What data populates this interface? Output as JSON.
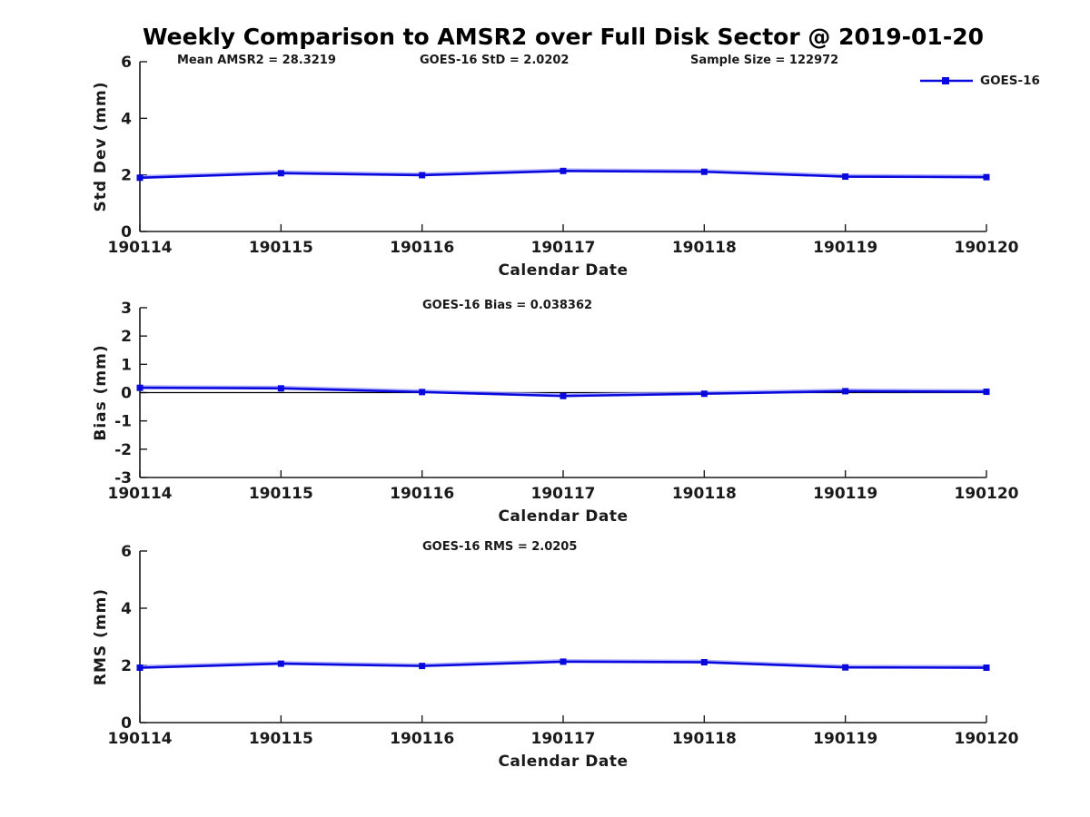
{
  "figure": {
    "title": "Weekly Comparison to AMSR2 over Full Disk Sector @ 2019-01-20",
    "text_color": "#1a1a1a",
    "line_color": "#0909dd",
    "halo_color": "#9b9bff",
    "background": "#ffffff"
  },
  "legend": {
    "label": "GOES-16"
  },
  "chart_data": [
    {
      "type": "line",
      "annotations": [
        "Mean AMSR2 = 28.3219",
        "GOES-16 StD = 2.0202",
        "Sample Size = 122972"
      ],
      "ylabel": "Std Dev (mm)",
      "xlabel": "Calendar Date",
      "categories": [
        "190114",
        "190115",
        "190116",
        "190117",
        "190118",
        "190119",
        "190120"
      ],
      "series": [
        {
          "name": "GOES-16",
          "values": [
            1.9,
            2.06,
            1.99,
            2.14,
            2.11,
            1.94,
            1.92
          ]
        }
      ],
      "ylim": [
        0,
        6
      ],
      "yticks": [
        0,
        2,
        4,
        6
      ],
      "zero_line": false,
      "legend_position": "top-right",
      "grid": false
    },
    {
      "type": "line",
      "annotations": [
        "GOES-16 Bias  = 0.038362"
      ],
      "ylabel": "Bias (mm)",
      "xlabel": "Calendar Date",
      "categories": [
        "190114",
        "190115",
        "190116",
        "190117",
        "190118",
        "190119",
        "190120"
      ],
      "series": [
        {
          "name": "GOES-16",
          "values": [
            0.17,
            0.15,
            0.02,
            -0.12,
            -0.04,
            0.05,
            0.03
          ]
        }
      ],
      "ylim": [
        -3,
        3
      ],
      "yticks": [
        -3,
        -2,
        -1,
        0,
        1,
        2,
        3
      ],
      "zero_line": true,
      "grid": false
    },
    {
      "type": "line",
      "annotations": [
        "GOES-16 RMS = 2.0205"
      ],
      "ylabel": "RMS (mm)",
      "xlabel": "Calendar Date",
      "categories": [
        "190114",
        "190115",
        "190116",
        "190117",
        "190118",
        "190119",
        "190120"
      ],
      "series": [
        {
          "name": "GOES-16",
          "values": [
            1.92,
            2.06,
            1.98,
            2.13,
            2.11,
            1.93,
            1.92
          ]
        }
      ],
      "ylim": [
        0,
        6
      ],
      "yticks": [
        0,
        2,
        4,
        6
      ],
      "zero_line": false,
      "grid": false
    }
  ]
}
